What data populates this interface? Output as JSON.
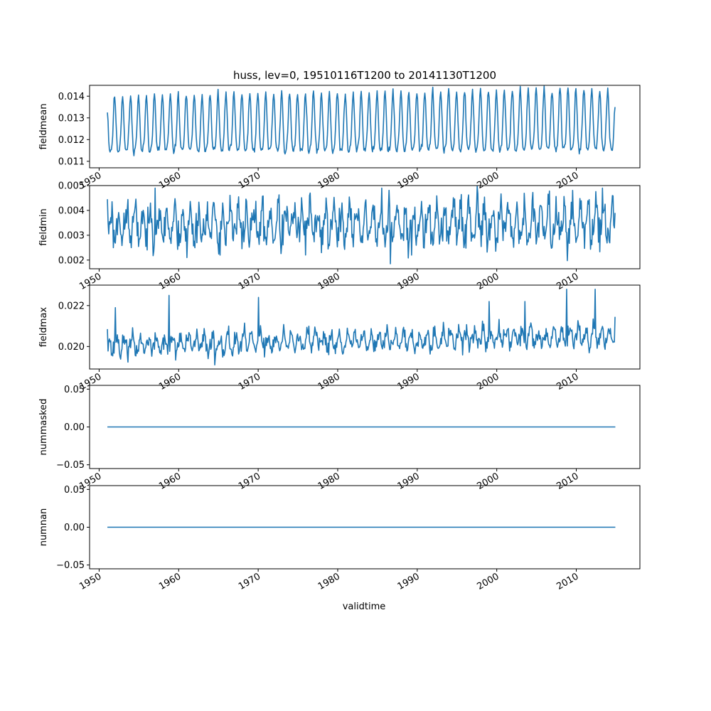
{
  "figure": {
    "title": "huss, lev=0, 19510116T1200 to 20141130T1200",
    "xlabel": "validtime",
    "x_tick_labels": [
      "1950",
      "1960",
      "1970",
      "1980",
      "1990",
      "2000",
      "2010"
    ],
    "line_color": "#1f77b4"
  },
  "chart_data": [
    {
      "type": "line",
      "ylabel": "fieldmean",
      "xlim": [
        1948.8,
        2018.0
      ],
      "ylim": [
        0.0107,
        0.0145
      ],
      "yticks": [
        0.011,
        0.012,
        0.013,
        0.014
      ],
      "ytick_labels": [
        "0.011",
        "0.012",
        "0.013",
        "0.014"
      ],
      "x_start": 1951.04,
      "x_end": 2014.91,
      "pattern": "seasonal",
      "mean_start": 0.01245,
      "mean_end": 0.01262,
      "amp_start": 0.00125,
      "amp_end": 0.0014,
      "noise": 8e-05,
      "phase_deg": 35,
      "first_value": 0.01325,
      "last_value": 0.0135,
      "spikes": [],
      "seed": 11
    },
    {
      "type": "line",
      "ylabel": "fieldmin",
      "xlim": [
        1948.8,
        2018.0
      ],
      "ylim": [
        0.00165,
        0.005
      ],
      "yticks": [
        0.002,
        0.003,
        0.004,
        0.005
      ],
      "ytick_labels": [
        "0.002",
        "0.003",
        "0.004",
        "0.005"
      ],
      "x_start": 1951.04,
      "x_end": 2014.91,
      "pattern": "seasonal",
      "mean_start": 0.0034,
      "mean_end": 0.0035,
      "amp_start": 0.00055,
      "amp_end": 0.00062,
      "noise": 0.00035,
      "phase_deg": 200,
      "first_value": 0.00445,
      "last_value": 0.0039,
      "spikes": [
        [
          1957.0,
          0.0049
        ],
        [
          1961.0,
          0.0021
        ],
        [
          1965.2,
          0.0022
        ],
        [
          1986.6,
          0.00185
        ],
        [
          2013.3,
          0.0049
        ],
        [
          1989.3,
          0.0022
        ]
      ],
      "seed": 23
    },
    {
      "type": "line",
      "ylabel": "fieldmax",
      "xlim": [
        1948.8,
        2018.0
      ],
      "ylim": [
        0.0189,
        0.023
      ],
      "yticks": [
        0.02,
        0.022
      ],
      "ytick_labels": [
        "0.020",
        "0.022"
      ],
      "x_start": 1951.04,
      "x_end": 2014.91,
      "pattern": "seasonal",
      "mean_start": 0.02005,
      "mean_end": 0.02055,
      "amp_start": 0.00035,
      "amp_end": 0.0004,
      "noise": 0.00022,
      "phase_deg": 300,
      "first_value": 0.02085,
      "last_value": 0.02145,
      "spikes": [
        [
          1952.0,
          0.0219
        ],
        [
          1958.8,
          0.0225
        ],
        [
          1970.0,
          0.0224
        ],
        [
          1964.5,
          0.0191
        ],
        [
          2008.8,
          0.0228
        ],
        [
          2012.4,
          0.0228
        ],
        [
          1999.0,
          0.0222
        ],
        [
          2003.5,
          0.0222
        ]
      ],
      "seed": 37
    },
    {
      "type": "line",
      "ylabel": "nummasked",
      "xlim": [
        1948.8,
        2018.0
      ],
      "ylim": [
        -0.055,
        0.055
      ],
      "yticks": [
        -0.05,
        0.0,
        0.05
      ],
      "ytick_labels": [
        "−0.05",
        "0.00",
        "0.05"
      ],
      "x_start": 1951.04,
      "x_end": 2014.91,
      "pattern": "constant",
      "constant": 0.0
    },
    {
      "type": "line",
      "ylabel": "numnan",
      "xlim": [
        1948.8,
        2018.0
      ],
      "ylim": [
        -0.055,
        0.055
      ],
      "yticks": [
        -0.05,
        0.0,
        0.05
      ],
      "ytick_labels": [
        "−0.05",
        "0.00",
        "0.05"
      ],
      "x_start": 1951.04,
      "x_end": 2014.91,
      "pattern": "constant",
      "constant": 0.0
    }
  ]
}
